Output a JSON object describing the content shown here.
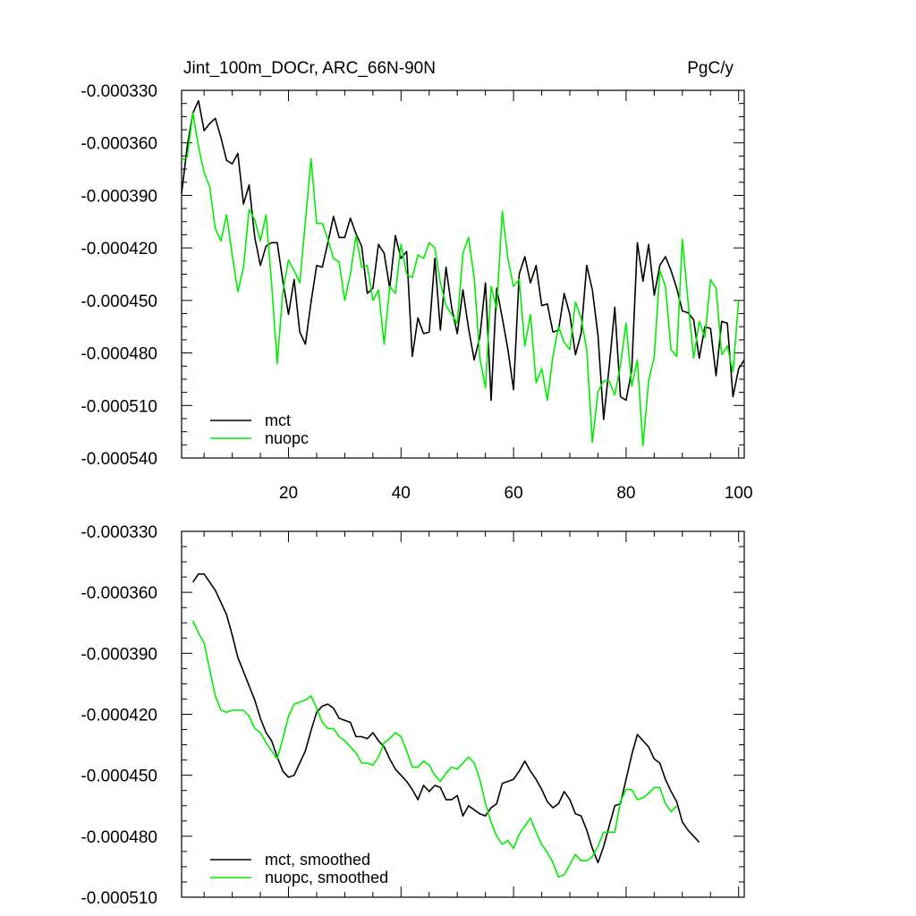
{
  "chart_data": [
    {
      "type": "line",
      "title": "Jint_100m_DOCr, ARC_66N-90N",
      "units": "PgC/y",
      "xlim": [
        1,
        101
      ],
      "ylim": [
        -0.00054,
        -0.00033
      ],
      "xticks": [
        20,
        40,
        60,
        80,
        100
      ],
      "xtick_labels": [
        "20",
        "40",
        "60",
        "80",
        "100"
      ],
      "yticks": [
        -0.00033,
        -0.00036,
        -0.00039,
        -0.00042,
        -0.00045,
        -0.00048,
        -0.00051,
        -0.00054
      ],
      "ytick_labels": [
        "-0.000330",
        "-0.000360",
        "-0.000390",
        "-0.000420",
        "-0.000450",
        "-0.000480",
        "-0.000510",
        "-0.000540"
      ],
      "legend_position": "bottom-left",
      "x_start": 1,
      "series": [
        {
          "name": "mct",
          "color": "#000000",
          "values": [
            -0.000389,
            -0.000362,
            -0.000343,
            -0.000336,
            -0.000353,
            -0.000349,
            -0.000346,
            -0.000357,
            -0.00037,
            -0.000372,
            -0.000366,
            -0.000395,
            -0.000384,
            -0.000414,
            -0.00043,
            -0.000419,
            -0.000417,
            -0.000417,
            -0.000439,
            -0.000458,
            -0.000438,
            -0.000468,
            -0.000475,
            -0.000451,
            -0.00043,
            -0.000431,
            -0.000417,
            -0.000402,
            -0.000414,
            -0.000414,
            -0.000403,
            -0.000412,
            -0.000419,
            -0.000446,
            -0.000443,
            -0.000418,
            -0.000423,
            -0.000443,
            -0.000413,
            -0.000426,
            -0.000422,
            -0.000482,
            -0.00046,
            -0.000469,
            -0.000468,
            -0.000426,
            -0.000467,
            -0.000431,
            -0.000454,
            -0.000469,
            -0.000444,
            -0.000466,
            -0.000484,
            -0.000471,
            -0.00044,
            -0.000507,
            -0.000443,
            -0.00046,
            -0.000478,
            -0.000501,
            -0.000435,
            -0.000425,
            -0.00044,
            -0.00043,
            -0.000453,
            -0.000452,
            -0.000468,
            -0.000467,
            -0.000446,
            -0.000458,
            -0.000481,
            -0.000469,
            -0.00043,
            -0.000444,
            -0.00047,
            -0.000518,
            -0.000488,
            -0.000454,
            -0.000505,
            -0.000507,
            -0.00049,
            -0.000417,
            -0.000439,
            -0.000418,
            -0.000447,
            -0.00043,
            -0.000425,
            -0.000433,
            -0.000443,
            -0.000456,
            -0.000457,
            -0.000461,
            -0.000483,
            -0.000465,
            -0.000466,
            -0.000493,
            -0.000462,
            -0.000463,
            -0.000505,
            -0.000489,
            -0.000484
          ]
        },
        {
          "name": "nuopc",
          "color": "#00ee00",
          "values": [
            -0.00037,
            -0.000368,
            -0.000343,
            -0.000362,
            -0.000377,
            -0.000385,
            -0.000409,
            -0.000416,
            -0.000401,
            -0.000424,
            -0.000445,
            -0.000431,
            -0.000398,
            -0.000404,
            -0.000416,
            -0.000401,
            -0.00044,
            -0.000486,
            -0.000445,
            -0.000427,
            -0.000433,
            -0.00044,
            -0.000405,
            -0.000369,
            -0.000406,
            -0.000406,
            -0.000415,
            -0.000426,
            -0.000428,
            -0.00045,
            -0.000435,
            -0.000413,
            -0.000431,
            -0.00043,
            -0.00045,
            -0.000444,
            -0.000475,
            -0.000442,
            -0.000446,
            -0.000418,
            -0.000435,
            -0.000437,
            -0.000424,
            -0.000426,
            -0.000417,
            -0.00042,
            -0.00044,
            -0.000453,
            -0.000458,
            -0.000463,
            -0.000423,
            -0.000414,
            -0.000437,
            -0.000483,
            -0.0005,
            -0.000442,
            -0.000455,
            -0.000399,
            -0.000426,
            -0.000442,
            -0.000438,
            -0.000476,
            -0.000458,
            -0.000497,
            -0.000489,
            -0.000507,
            -0.000482,
            -0.000465,
            -0.000474,
            -0.000478,
            -0.000451,
            -0.00046,
            -0.000478,
            -0.000531,
            -0.000502,
            -0.000496,
            -0.000496,
            -0.000504,
            -0.000487,
            -0.000463,
            -0.000499,
            -0.000484,
            -0.000533,
            -0.000496,
            -0.000482,
            -0.000433,
            -0.000442,
            -0.000478,
            -0.000482,
            -0.000415,
            -0.00045,
            -0.000483,
            -0.000462,
            -0.000471,
            -0.000438,
            -0.000443,
            -0.000481,
            -0.000476,
            -0.000491,
            -0.00045
          ]
        }
      ]
    },
    {
      "type": "line",
      "title": "",
      "units": "",
      "xlim": [
        1,
        101
      ],
      "ylim": [
        -0.00051,
        -0.00033
      ],
      "xticks": [
        20,
        40,
        60,
        80,
        100
      ],
      "xtick_labels": [],
      "yticks": [
        -0.00033,
        -0.00036,
        -0.00039,
        -0.00042,
        -0.00045,
        -0.00048,
        -0.00051
      ],
      "ytick_labels": [
        "-0.000330",
        "-0.000360",
        "-0.000390",
        "-0.000420",
        "-0.000450",
        "-0.000480",
        "-0.000510"
      ],
      "legend_position": "bottom-left",
      "x_start": 3,
      "series": [
        {
          "name": "mct, smoothed",
          "color": "#000000",
          "values": [
            -0.000355,
            -0.000351,
            -0.000351,
            -0.000355,
            -0.000359,
            -0.000365,
            -0.000371,
            -0.000381,
            -0.000392,
            -0.000399,
            -0.000406,
            -0.000413,
            -0.000422,
            -0.000429,
            -0.000433,
            -0.000441,
            -0.000448,
            -0.000451,
            -0.00045,
            -0.000444,
            -0.000438,
            -0.000428,
            -0.000419,
            -0.000416,
            -0.000415,
            -0.000417,
            -0.000422,
            -0.000423,
            -0.000424,
            -0.000431,
            -0.000431,
            -0.000432,
            -0.000429,
            -0.000433,
            -0.000436,
            -0.000442,
            -0.000447,
            -0.00045,
            -0.000453,
            -0.000457,
            -0.000462,
            -0.000455,
            -0.000458,
            -0.000455,
            -0.000456,
            -0.000462,
            -0.000462,
            -0.00046,
            -0.00047,
            -0.000465,
            -0.000467,
            -0.000469,
            -0.00047,
            -0.000466,
            -0.000464,
            -0.000454,
            -0.000453,
            -0.000452,
            -0.000448,
            -0.000443,
            -0.000448,
            -0.000452,
            -0.000457,
            -0.000463,
            -0.000466,
            -0.000464,
            -0.000458,
            -0.000462,
            -0.000469,
            -0.00047,
            -0.000477,
            -0.000486,
            -0.000493,
            -0.000485,
            -0.000475,
            -0.000465,
            -0.000464,
            -0.000452,
            -0.00044,
            -0.00043,
            -0.000433,
            -0.000436,
            -0.000442,
            -0.000444,
            -0.000452,
            -0.000458,
            -0.000463,
            -0.000473,
            -0.000477,
            -0.00048,
            -0.000483
          ]
        },
        {
          "name": "nuopc, smoothed",
          "color": "#00ee00",
          "values": [
            -0.000374,
            -0.00038,
            -0.000385,
            -0.000398,
            -0.000411,
            -0.000418,
            -0.000419,
            -0.000418,
            -0.000418,
            -0.000418,
            -0.000421,
            -0.000427,
            -0.000429,
            -0.000434,
            -0.000438,
            -0.000442,
            -0.000432,
            -0.000421,
            -0.000415,
            -0.000414,
            -0.000413,
            -0.000411,
            -0.000417,
            -0.000424,
            -0.000427,
            -0.000427,
            -0.000431,
            -0.000433,
            -0.000436,
            -0.000439,
            -0.000444,
            -0.000444,
            -0.000445,
            -0.000441,
            -0.000434,
            -0.000432,
            -0.000429,
            -0.000431,
            -0.000438,
            -0.000446,
            -0.000446,
            -0.000443,
            -0.000445,
            -0.00045,
            -0.000453,
            -0.000449,
            -0.000446,
            -0.000447,
            -0.000444,
            -0.000441,
            -0.000444,
            -0.000452,
            -0.000464,
            -0.000473,
            -0.00048,
            -0.000484,
            -0.000482,
            -0.000486,
            -0.000479,
            -0.000475,
            -0.000471,
            -0.000478,
            -0.000484,
            -0.000488,
            -0.000493,
            -0.0005,
            -0.000499,
            -0.000494,
            -0.000489,
            -0.000492,
            -0.000492,
            -0.00049,
            -0.000485,
            -0.000478,
            -0.000478,
            -0.000478,
            -0.000463,
            -0.000457,
            -0.000457,
            -0.000462,
            -0.000461,
            -0.000459,
            -0.000456,
            -0.000456,
            -0.000464,
            -0.000468,
            -0.000465
          ]
        }
      ]
    }
  ]
}
